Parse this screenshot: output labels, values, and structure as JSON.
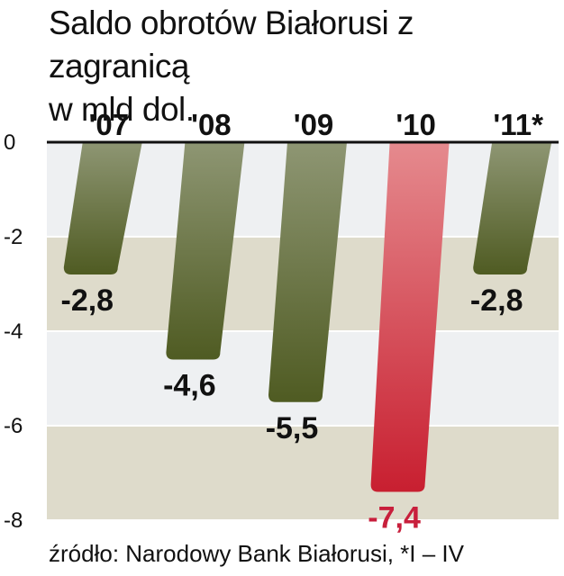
{
  "title_line1": "Saldo obrotów Białorusi z zagranicą",
  "title_line2": "w mld dol.",
  "source": "źródło: Narodowy Bank Białorusi, *I – IV",
  "colors": {
    "bar_normal_top": "#8e9673",
    "bar_normal_bottom": "#4f5b22",
    "bar_highlight_top": "#e58a8e",
    "bar_highlight_bottom": "#c81f30",
    "label_normal": "#111111",
    "label_highlight": "#c81f3c",
    "band_light": "#eef0f2",
    "band_tan": "#dedbcb"
  },
  "chart_data": {
    "type": "bar",
    "title": "Saldo obrotów Białorusi z zagranicą w mld dol.",
    "categories": [
      "'07",
      "'08",
      "'09",
      "'10",
      "'11*"
    ],
    "values": [
      -2.8,
      -4.6,
      -5.5,
      -7.4,
      -2.8
    ],
    "value_labels": [
      "-2,8",
      "-4,6",
      "-5,5",
      "-7,4",
      "-2,8"
    ],
    "highlight_index": 3,
    "yticks": [
      "0",
      "-2",
      "-4",
      "-6",
      "-8"
    ],
    "ylim": [
      -8,
      0
    ],
    "xlabel": "",
    "ylabel": "",
    "grid": true
  }
}
